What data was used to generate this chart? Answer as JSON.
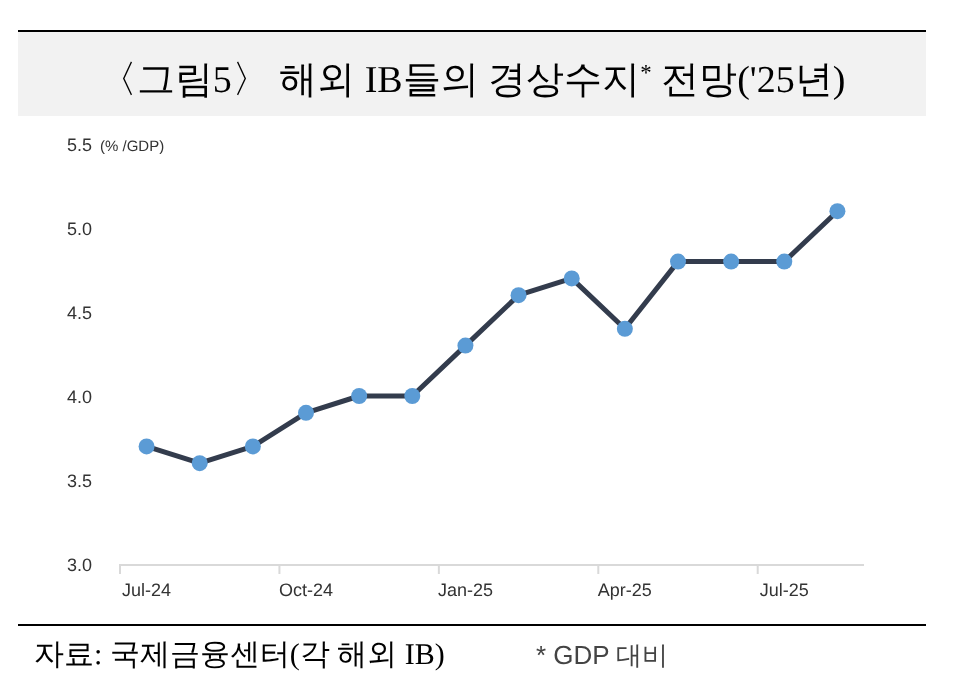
{
  "chart_data": {
    "type": "line",
    "title": "〈그림5〉 해외 IB들의 경상수지$^{*}$ 전망('25년)",
    "ylabel": "(% /GDP)",
    "categories": [
      "Jul-24",
      null,
      null,
      "Oct-24",
      null,
      null,
      "Jan-25",
      null,
      null,
      "Apr-25",
      null,
      null,
      "Jul-25",
      null
    ],
    "series": [
      {
        "color": "#333c4d",
        "values": [
          3.7,
          3.6,
          3.7,
          3.9,
          4.0,
          4.0,
          4.3,
          4.6,
          4.7,
          4.4,
          4.8,
          4.8,
          4.8,
          5.1
        ]
      }
    ],
    "marker": "circle",
    "ylim": [
      3.0,
      5.5
    ],
    "yticks": [
      {
        "value": 3.0,
        "label": "3.0"
      },
      {
        "value": 3.5,
        "label": "3.5"
      },
      {
        "value": 4.0,
        "label": "4.0"
      },
      {
        "value": 4.5,
        "label": "4.5"
      },
      {
        "value": 5.0,
        "label": "5.0"
      },
      {
        "value": 5.5,
        "label": "5.5"
      }
    ],
    "grid": false,
    "annotations": [
      "자료: 국제금융센터(각 해외 IB)",
      "* GDP 대비"
    ]
  }
}
